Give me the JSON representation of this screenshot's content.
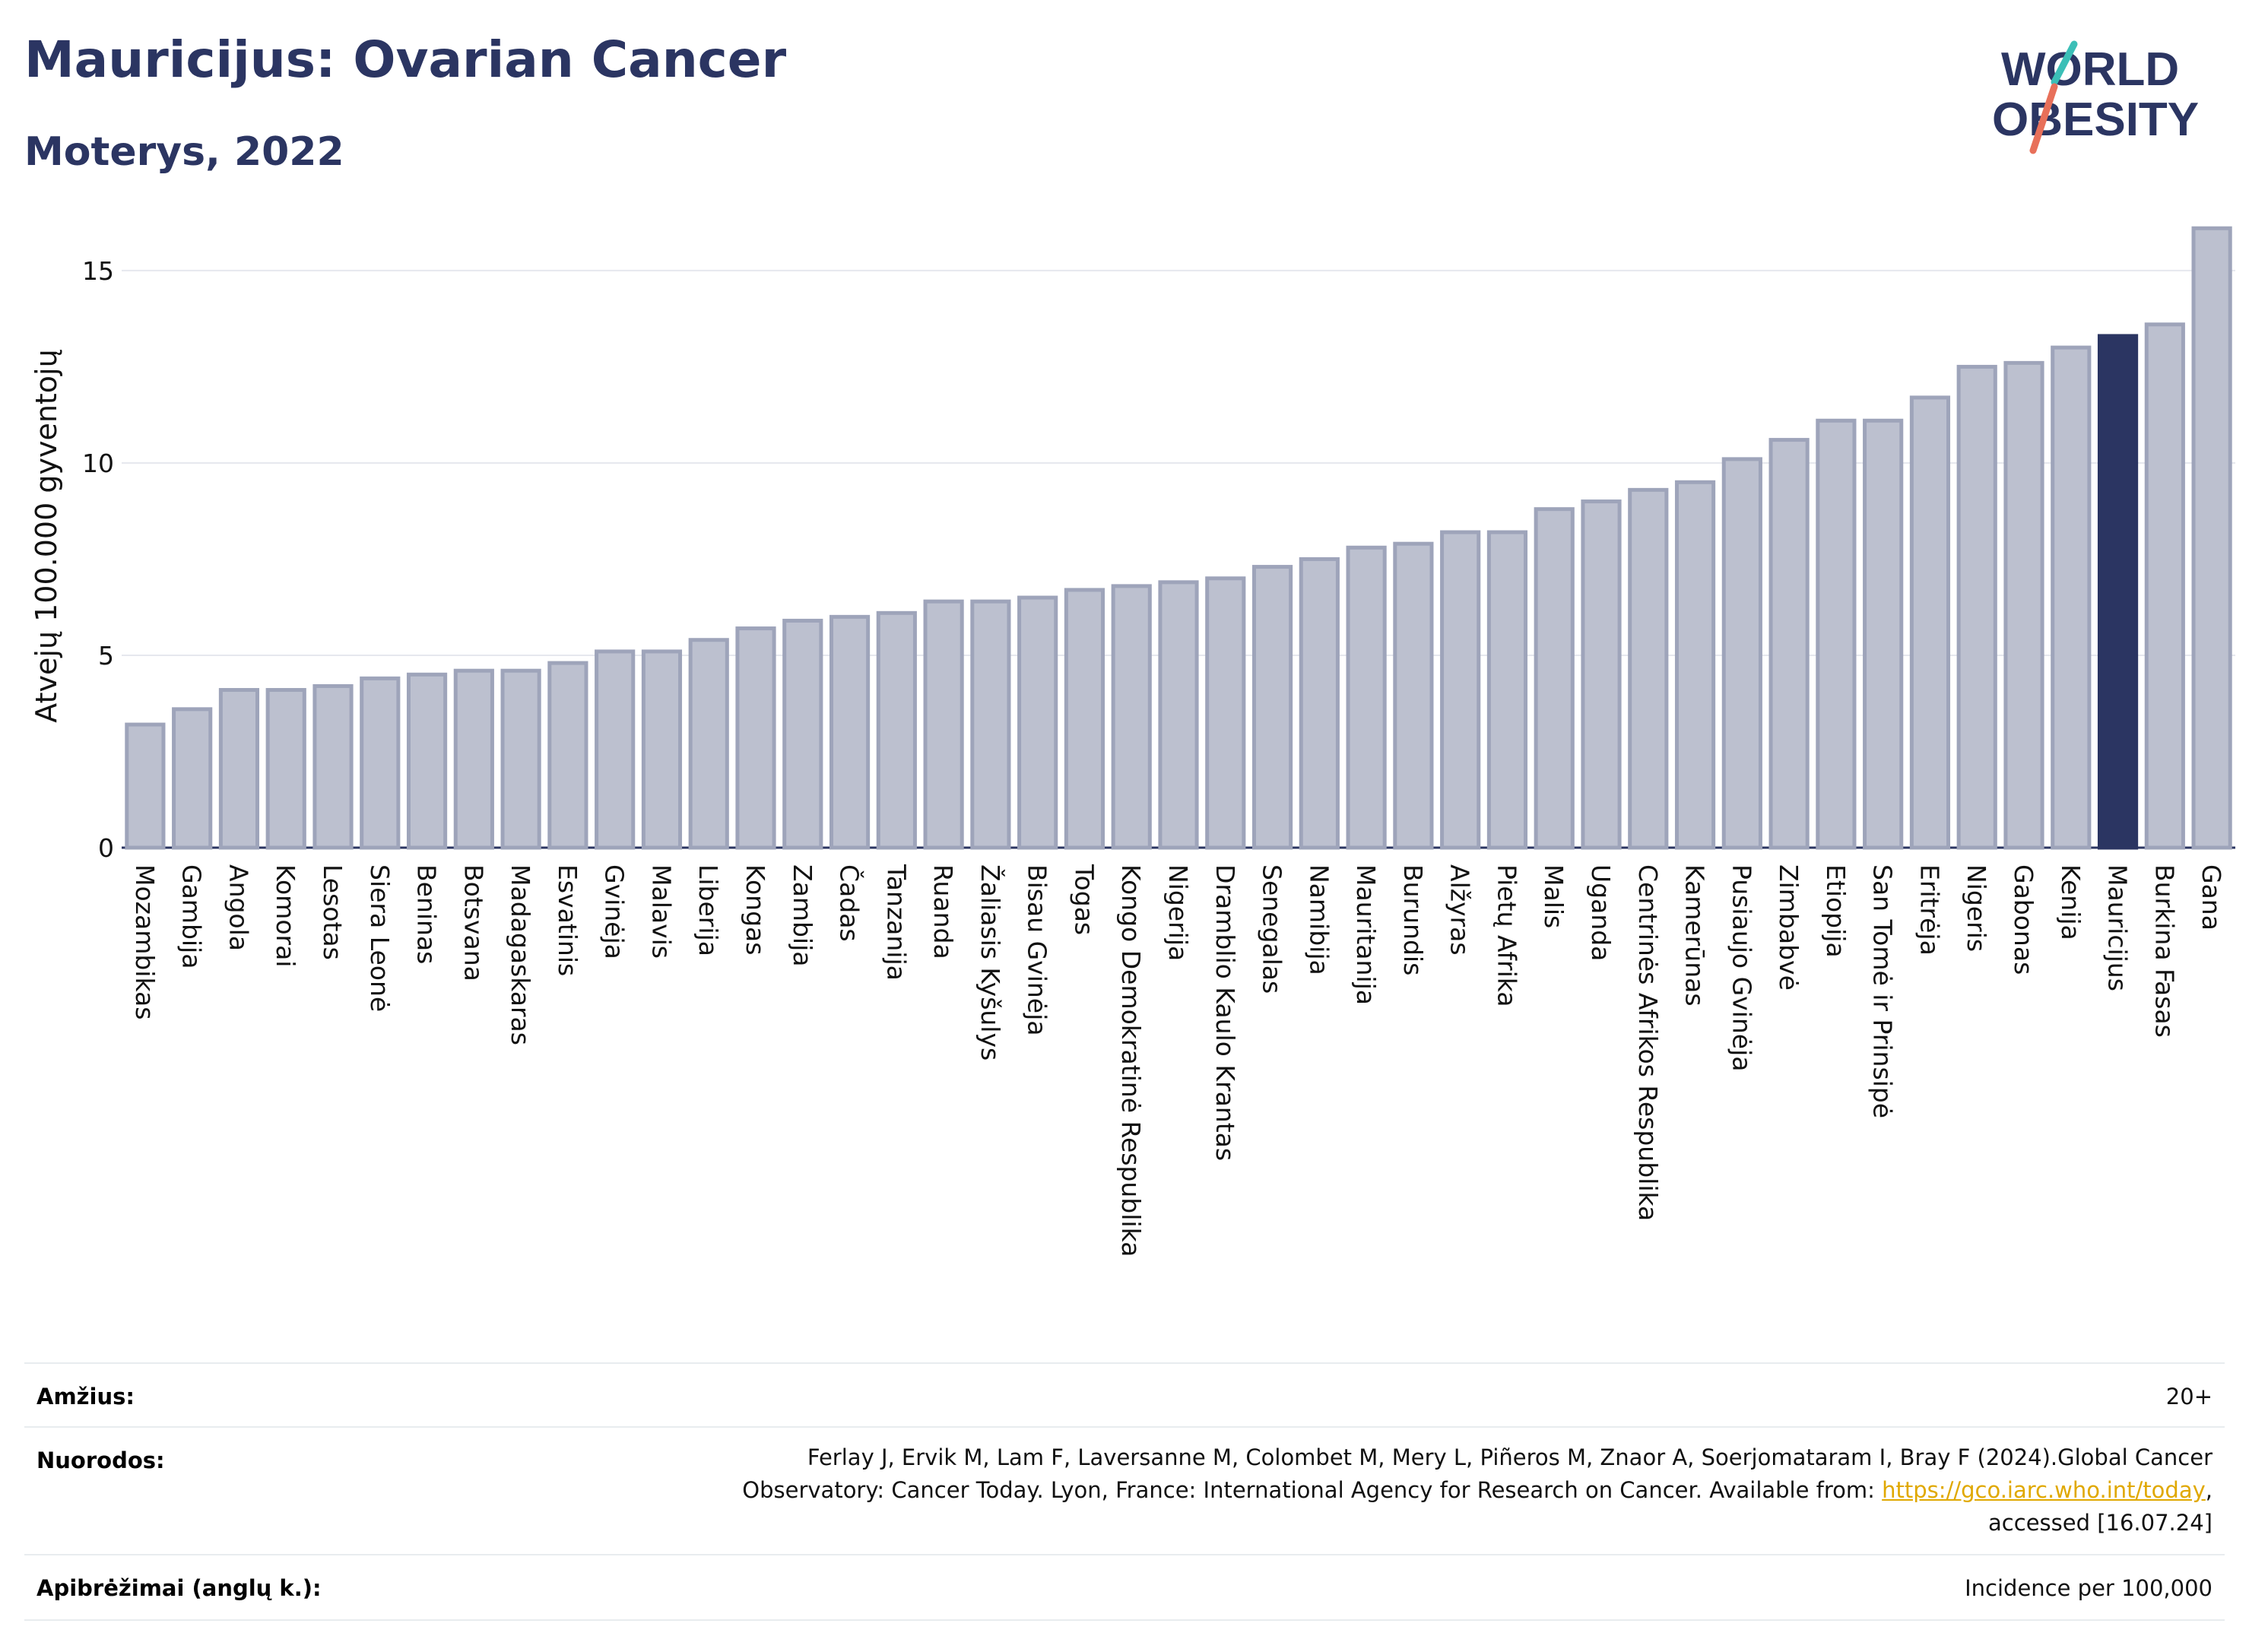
{
  "header": {
    "title": "Mauricijus: Ovarian Cancer",
    "subtitle": "Moterys, 2022"
  },
  "logo": {
    "line1": "WORLD",
    "line2": "OBESITY",
    "colors": {
      "text": "#2b3562",
      "slash_teal": "#3bbfb7",
      "slash_coral": "#e8705a"
    }
  },
  "chart_data": {
    "type": "bar",
    "ylabel": "Atvejų 100.000 gyventojų",
    "ylim": [
      0,
      16.5
    ],
    "yticks": [
      0,
      5,
      10,
      15
    ],
    "grid": true,
    "highlight": "Mauricijus",
    "colors": {
      "bar": "#bcc0cf",
      "bar_stroke": "#9ea4ba",
      "highlight": "#2b3562"
    },
    "categories": [
      "Mozambikas",
      "Gambija",
      "Angola",
      "Komorai",
      "Lesotas",
      "Siera Leonė",
      "Beninas",
      "Botsvana",
      "Madagaskaras",
      "Esvatinis",
      "Gvinėja",
      "Malavis",
      "Liberija",
      "Kongas",
      "Zambija",
      "Čadas",
      "Tanzanija",
      "Ruanda",
      "Žaliasis Kyšulys",
      "Bisau Gvinėja",
      "Togas",
      "Kongo Demokratinė Respublika",
      "Nigerija",
      "Dramblio Kaulo Krantas",
      "Senegalas",
      "Namibija",
      "Mauritanija",
      "Burundis",
      "Alžyras",
      "Pietų Afrika",
      "Malis",
      "Uganda",
      "Centrinės Afrikos Respublika",
      "Kamerūnas",
      "Pusiaujo Gvinėja",
      "Zimbabvė",
      "Etiopija",
      "San Tomė ir Prinsipė",
      "Eritrėja",
      "Nigeris",
      "Gabonas",
      "Kenija",
      "Mauricijus",
      "Burkina Fasas",
      "Gana"
    ],
    "values": [
      3.2,
      3.6,
      4.1,
      4.1,
      4.2,
      4.4,
      4.5,
      4.6,
      4.6,
      4.8,
      5.1,
      5.1,
      5.4,
      5.7,
      5.9,
      6.0,
      6.1,
      6.4,
      6.4,
      6.5,
      6.7,
      6.8,
      6.9,
      7.0,
      7.3,
      7.5,
      7.8,
      7.9,
      8.2,
      8.2,
      8.8,
      9.0,
      9.3,
      9.5,
      10.1,
      10.6,
      11.1,
      11.1,
      11.7,
      12.5,
      12.6,
      13.0,
      13.3,
      13.6,
      16.1
    ]
  },
  "meta": {
    "age_label": "Amžius:",
    "age_value": "20+",
    "refs_label": "Nuorodos:",
    "refs_line1": "Ferlay J, Ervik M, Lam F, Laversanne M, Colombet M, Mery L, Piñeros M, Znaor A, Soerjomataram I, Bray F (2024).Global Cancer",
    "refs_line2": "Observatory: Cancer Today. Lyon, France: International Agency for Research on Cancer. Available from: ",
    "refs_link": "https://gco.iarc.who.int/today",
    "refs_line2_end": ",",
    "refs_line3": "accessed [16.07.24]",
    "def_label": "Apibrėžimai (anglų k.):",
    "def_value": "Incidence per 100,000"
  }
}
